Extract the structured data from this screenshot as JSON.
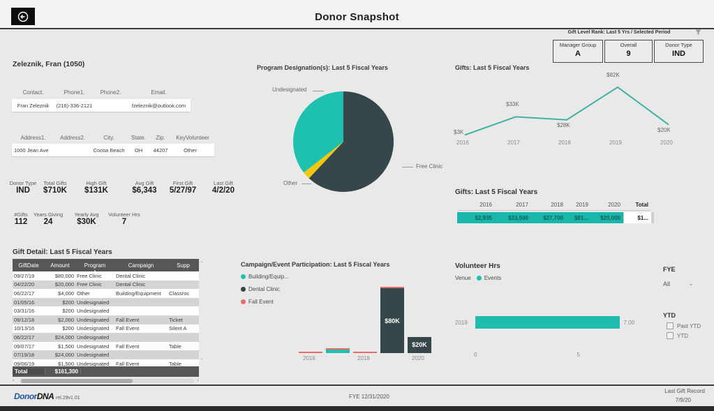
{
  "header": {
    "title": "Donor Snapshot"
  },
  "rank_panel": {
    "title": "Gift Level Rank: Last 5 Yrs / Selected Period",
    "boxes": [
      {
        "label": "Manager Group",
        "value": "A"
      },
      {
        "label": "Overall",
        "value": "9"
      },
      {
        "label": "Donor Type",
        "value": "IND"
      }
    ]
  },
  "donor": {
    "name": "Zeleznik, Fran (1050)",
    "contact_table": {
      "headers": [
        "Contact.",
        "Phone1.",
        "Phone2.",
        "Email."
      ],
      "row": [
        "Fran Zeleznik",
        "(216)-336-2121",
        "",
        "fzeleznik@outlook.com"
      ]
    },
    "address_table": {
      "headers": [
        "Address1.",
        "Address2.",
        "City.",
        "State.",
        "Zip.",
        "KeyVolunteer"
      ],
      "row": [
        "1000 Jean Ave",
        "",
        "Cocoa Beach",
        "OH",
        "44207",
        "Other"
      ]
    },
    "stats_row1": [
      {
        "label": "Donor Type",
        "value": "IND"
      },
      {
        "label": "Total Gifts",
        "value": "$710K"
      },
      {
        "label": "High Gift",
        "value": "$131K"
      },
      {
        "label": "Avg Gift",
        "value": "$6,343"
      },
      {
        "label": "First Gift",
        "value": "5/27/97"
      },
      {
        "label": "Last Gift",
        "value": "4/2/20"
      }
    ],
    "stats_row2": [
      {
        "label": "#Gifts",
        "value": "112"
      },
      {
        "label": "Years Giving",
        "value": "24"
      },
      {
        "label": "Yearly Avg",
        "value": "$30K"
      },
      {
        "label": "Volunteer Hrs",
        "value": "7"
      }
    ]
  },
  "gift_detail": {
    "title": "Gift Detail: Last 5 Fiscal Years",
    "headers": [
      "GiftDate",
      "Amount",
      "Program",
      "Campaign",
      "Supp"
    ],
    "rows": [
      [
        "09/27/19",
        "$80,000",
        "Free Clinic",
        "Dental Clinic",
        ""
      ],
      [
        "04/22/20",
        "$20,000",
        "Free Clinic",
        "Dental Clinic",
        ""
      ],
      [
        "06/22/17",
        "$4,000",
        "Other",
        "Building/Equipment",
        "Classroc"
      ],
      [
        "01/05/16",
        "$200",
        "Undesignated",
        "",
        ""
      ],
      [
        "03/31/16",
        "$200",
        "Undesignated",
        "",
        ""
      ],
      [
        "09/12/18",
        "$2,000",
        "Undesignated",
        "Fall Event",
        "Ticket"
      ],
      [
        "10/13/16",
        "$200",
        "Undesignated",
        "Fall Event",
        "Silent A"
      ],
      [
        "06/22/17",
        "$24,000",
        "Undesignated",
        "",
        ""
      ],
      [
        "09/07/17",
        "$1,500",
        "Undesignated",
        "Fall Event",
        "Table"
      ],
      [
        "07/19/18",
        "$24,000",
        "Undesignated",
        "",
        ""
      ],
      [
        "09/06/19",
        "$1,500",
        "Undesignated",
        "Fall Event",
        "Table"
      ]
    ],
    "total_label": "Total",
    "total_value": "$161,300"
  },
  "volunteer_panel": {
    "fye_label": "FYE",
    "fye_value": "All",
    "ytd_label": "YTD",
    "checkboxes": [
      "Past YTD",
      "YTD"
    ]
  },
  "footer": {
    "logo_part1": "Donor",
    "logo_part2": "DNA",
    "version": "rel.29v1.01",
    "fye_text": "FYE 12/31/2020",
    "last_gift_label": "Last Gift Record",
    "last_gift_value": "7/9/20"
  },
  "chart_data": [
    {
      "id": "program_pie",
      "type": "pie",
      "title": "Program Designation(s): Last 5 Fiscal Years",
      "labels": [
        "Free Clinic",
        "Other",
        "Undesignated"
      ],
      "values": [
        100000,
        4000,
        57300
      ],
      "colors": [
        "#36474c",
        "#F2C80F",
        "#1ec0b0"
      ]
    },
    {
      "id": "gifts_line",
      "type": "line",
      "title": "Gifts: Last 5 Fiscal Years",
      "x": [
        "2016",
        "2017",
        "2018",
        "2019",
        "2020"
      ],
      "values": [
        3000,
        33000,
        28000,
        82000,
        20000
      ],
      "point_labels": [
        "$3K",
        "$33K",
        "$28K",
        "$82K",
        "$20K"
      ],
      "color": "#41b0a5",
      "ylim": [
        0,
        90000
      ]
    },
    {
      "id": "gifts_matrix",
      "type": "table",
      "title": "Gifts: Last 5 Fiscal Years",
      "columns": [
        "2016",
        "2017",
        "2018",
        "2019",
        "2020",
        "Total"
      ],
      "values": [
        "$2,935",
        "$33,500",
        "$27,700",
        "$81...",
        "$20,000",
        "$1..."
      ],
      "row_color": "#17b8ab"
    },
    {
      "id": "campaign_bar",
      "type": "bar",
      "stacked": true,
      "title": "Campaign/Event Participation: Last 5 Fiscal Years",
      "categories": [
        "2016",
        "2017",
        "2018",
        "2019",
        "2020"
      ],
      "x_tick_labels": [
        "2016",
        "2018",
        "2020"
      ],
      "series": [
        {
          "name": "Building/Equip...",
          "color": "#20bfb0",
          "values": [
            0,
            4000,
            0,
            0,
            0
          ]
        },
        {
          "name": "Dental Clinic",
          "color": "#36474c",
          "values": [
            0,
            0,
            0,
            80000,
            20000
          ]
        },
        {
          "name": "Fall Event",
          "color": "#ec6a66",
          "values": [
            200,
            1500,
            2000,
            1500,
            0
          ]
        }
      ],
      "bar_labels": [
        {
          "category": "2019",
          "text": "$80K"
        },
        {
          "category": "2020",
          "text": "$20K"
        }
      ],
      "ylim": [
        0,
        85000
      ]
    },
    {
      "id": "volunteer_bar",
      "type": "bar",
      "orientation": "horizontal",
      "title": "Volunteer Hrs",
      "legend": [
        "Venue",
        "Events"
      ],
      "categories": [
        "2019"
      ],
      "values": [
        7
      ],
      "value_labels": [
        "7.00"
      ],
      "x_ticks": [
        "0",
        "5"
      ],
      "xlim": [
        0,
        7.8
      ],
      "color": "#1ebdaf"
    }
  ]
}
